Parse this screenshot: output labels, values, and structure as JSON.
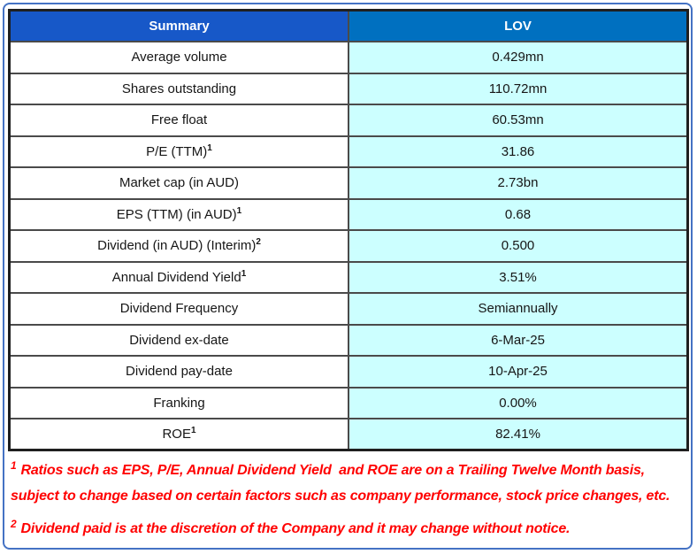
{
  "table": {
    "header": {
      "col1": "Summary",
      "col2": "LOV"
    },
    "rows": [
      {
        "label": "Average volume",
        "sup": "",
        "value": "0.429mn"
      },
      {
        "label": "Shares outstanding",
        "sup": "",
        "value": "110.72mn"
      },
      {
        "label": "Free float",
        "sup": "",
        "value": "60.53mn"
      },
      {
        "label": "P/E (TTM)",
        "sup": "1",
        "value": "31.86"
      },
      {
        "label": "Market cap (in AUD)",
        "sup": "",
        "value": "2.73bn"
      },
      {
        "label": "EPS (TTM) (in AUD)",
        "sup": "1",
        "value": "0.68"
      },
      {
        "label": "Dividend (in AUD) (Interim)",
        "sup": "2",
        "value": "0.500"
      },
      {
        "label": "Annual Dividend Yield",
        "sup": "1",
        "value": "3.51%"
      },
      {
        "label": "Dividend Frequency",
        "sup": "",
        "value": "Semiannually"
      },
      {
        "label": "Dividend ex-date",
        "sup": "",
        "value": "6-Mar-25"
      },
      {
        "label": "Dividend pay-date",
        "sup": "",
        "value": "10-Apr-25"
      },
      {
        "label": "Franking",
        "sup": "",
        "value": "0.00%"
      },
      {
        "label": "ROE",
        "sup": "1",
        "value": "82.41%"
      }
    ],
    "colors": {
      "header_left_bg": "#1758C8",
      "header_right_bg": "#0070C0",
      "value_bg": "#CCFFFF",
      "label_bg": "#FFFFFF",
      "inner_border": "#4a4a4a",
      "outer_border": "#1f1f1f",
      "frame_blue": "#4472C4",
      "footnote_red": "#FF0000"
    }
  },
  "footnotes": [
    {
      "sup": "1",
      "text": "Ratios such as EPS, P/E, Annual Dividend Yield  and ROE are on a Trailing Twelve Month basis, subject to change based on certain factors such as company performance, stock price changes, etc."
    },
    {
      "sup": "2",
      "text": "Dividend paid is at the discretion of the Company and it may change without notice."
    }
  ],
  "chart_data": {
    "type": "table",
    "title": "Summary",
    "columns": [
      "Summary",
      "LOV"
    ],
    "rows": [
      [
        "Average volume",
        "0.429mn"
      ],
      [
        "Shares outstanding",
        "110.72mn"
      ],
      [
        "Free float",
        "60.53mn"
      ],
      [
        "P/E (TTM)¹",
        "31.86"
      ],
      [
        "Market cap (in AUD)",
        "2.73bn"
      ],
      [
        "EPS (TTM) (in AUD)¹",
        "0.68"
      ],
      [
        "Dividend (in AUD) (Interim)²",
        "0.500"
      ],
      [
        "Annual Dividend Yield¹",
        "3.51%"
      ],
      [
        "Dividend Frequency",
        "Semiannually"
      ],
      [
        "Dividend ex-date",
        "6-Mar-25"
      ],
      [
        "Dividend pay-date",
        "10-Apr-25"
      ],
      [
        "Franking",
        "0.00%"
      ],
      [
        "ROE¹",
        "82.41%"
      ]
    ],
    "footnotes": [
      "1 Ratios such as EPS, P/E, Annual Dividend Yield and ROE are on a Trailing Twelve Month basis, subject to change based on certain factors such as company performance, stock price changes, etc.",
      "2 Dividend paid is at the discretion of the Company and it may change without notice."
    ]
  }
}
